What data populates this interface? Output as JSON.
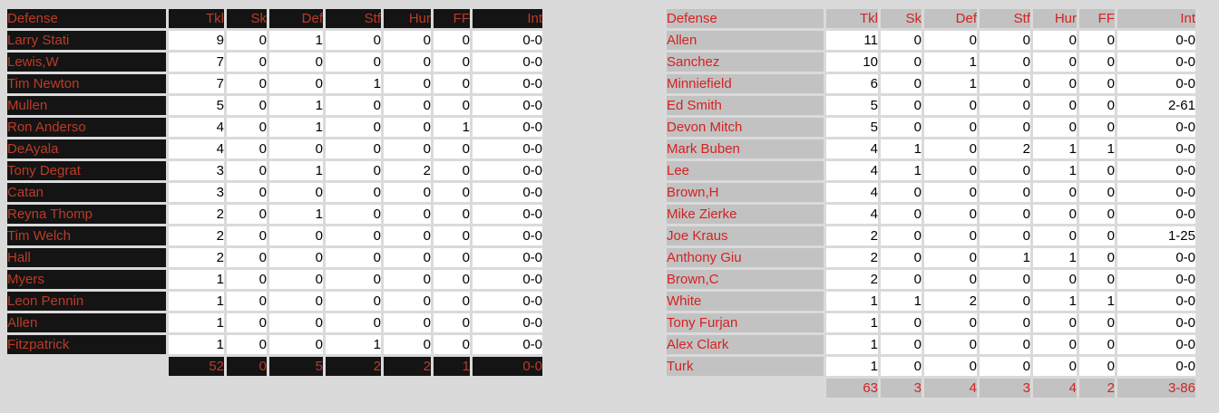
{
  "page": {
    "background_color": "#dadada"
  },
  "colors": {
    "left_table_label_bg": "#141414",
    "left_table_label_text": "#bc3b27",
    "right_table_label_bg": "#c2c2c2",
    "right_table_label_text": "#d42221",
    "value_cell_bg": "#ffffff",
    "value_cell_text": "#000000"
  },
  "tables": [
    {
      "name": "defense-table-left",
      "theme": "dark",
      "columns": [
        "Defense",
        "Tkl",
        "Sk",
        "Def",
        "Stf",
        "Hur",
        "FF",
        "Int"
      ],
      "rows": [
        [
          "Larry Stati",
          "9",
          "0",
          "1",
          "0",
          "0",
          "0",
          "0-0"
        ],
        [
          "Lewis,W",
          "7",
          "0",
          "0",
          "0",
          "0",
          "0",
          "0-0"
        ],
        [
          "Tim Newton",
          "7",
          "0",
          "0",
          "1",
          "0",
          "0",
          "0-0"
        ],
        [
          "Mullen",
          "5",
          "0",
          "1",
          "0",
          "0",
          "0",
          "0-0"
        ],
        [
          "Ron Anderso",
          "4",
          "0",
          "1",
          "0",
          "0",
          "1",
          "0-0"
        ],
        [
          "DeAyala",
          "4",
          "0",
          "0",
          "0",
          "0",
          "0",
          "0-0"
        ],
        [
          "Tony Degrat",
          "3",
          "0",
          "1",
          "0",
          "2",
          "0",
          "0-0"
        ],
        [
          "Catan",
          "3",
          "0",
          "0",
          "0",
          "0",
          "0",
          "0-0"
        ],
        [
          "Reyna Thomp",
          "2",
          "0",
          "1",
          "0",
          "0",
          "0",
          "0-0"
        ],
        [
          "Tim Welch",
          "2",
          "0",
          "0",
          "0",
          "0",
          "0",
          "0-0"
        ],
        [
          "Hall",
          "2",
          "0",
          "0",
          "0",
          "0",
          "0",
          "0-0"
        ],
        [
          "Myers",
          "1",
          "0",
          "0",
          "0",
          "0",
          "0",
          "0-0"
        ],
        [
          "Leon Pennin",
          "1",
          "0",
          "0",
          "0",
          "0",
          "0",
          "0-0"
        ],
        [
          "Allen",
          "1",
          "0",
          "0",
          "0",
          "0",
          "0",
          "0-0"
        ],
        [
          "Fitzpatrick",
          "1",
          "0",
          "0",
          "1",
          "0",
          "0",
          "0-0"
        ]
      ],
      "totals": [
        "52",
        "0",
        "5",
        "2",
        "2",
        "1",
        "0-0"
      ]
    },
    {
      "name": "defense-table-right",
      "theme": "silver",
      "columns": [
        "Defense",
        "Tkl",
        "Sk",
        "Def",
        "Stf",
        "Hur",
        "FF",
        "Int"
      ],
      "rows": [
        [
          "Allen",
          "11",
          "0",
          "0",
          "0",
          "0",
          "0",
          "0-0"
        ],
        [
          "Sanchez",
          "10",
          "0",
          "1",
          "0",
          "0",
          "0",
          "0-0"
        ],
        [
          "Minniefield",
          "6",
          "0",
          "1",
          "0",
          "0",
          "0",
          "0-0"
        ],
        [
          "Ed Smith",
          "5",
          "0",
          "0",
          "0",
          "0",
          "0",
          "2-61"
        ],
        [
          "Devon Mitch",
          "5",
          "0",
          "0",
          "0",
          "0",
          "0",
          "0-0"
        ],
        [
          "Mark Buben",
          "4",
          "1",
          "0",
          "2",
          "1",
          "1",
          "0-0"
        ],
        [
          "Lee",
          "4",
          "1",
          "0",
          "0",
          "1",
          "0",
          "0-0"
        ],
        [
          "Brown,H",
          "4",
          "0",
          "0",
          "0",
          "0",
          "0",
          "0-0"
        ],
        [
          "Mike Zierke",
          "4",
          "0",
          "0",
          "0",
          "0",
          "0",
          "0-0"
        ],
        [
          "Joe Kraus",
          "2",
          "0",
          "0",
          "0",
          "0",
          "0",
          "1-25"
        ],
        [
          "Anthony Giu",
          "2",
          "0",
          "0",
          "1",
          "1",
          "0",
          "0-0"
        ],
        [
          "Brown,C",
          "2",
          "0",
          "0",
          "0",
          "0",
          "0",
          "0-0"
        ],
        [
          "White",
          "1",
          "1",
          "2",
          "0",
          "1",
          "1",
          "0-0"
        ],
        [
          "Tony Furjan",
          "1",
          "0",
          "0",
          "0",
          "0",
          "0",
          "0-0"
        ],
        [
          "Alex Clark",
          "1",
          "0",
          "0",
          "0",
          "0",
          "0",
          "0-0"
        ],
        [
          "Turk",
          "1",
          "0",
          "0",
          "0",
          "0",
          "0",
          "0-0"
        ]
      ],
      "totals": [
        "63",
        "3",
        "4",
        "3",
        "4",
        "2",
        "3-86"
      ]
    }
  ]
}
